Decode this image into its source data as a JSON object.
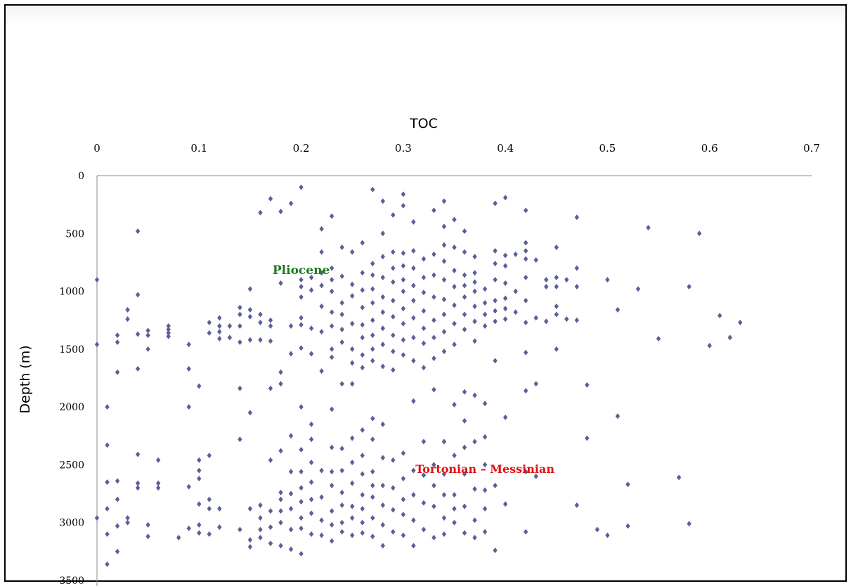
{
  "chart_data": {
    "type": "scatter",
    "title": "",
    "xlabel": "TOC",
    "ylabel": "Depth (m)",
    "xlim": [
      0,
      0.7
    ],
    "ylim": [
      0,
      3500
    ],
    "y_inverted": true,
    "x_axis_position": "top",
    "grid": false,
    "x_ticks": [
      "0",
      "0.1",
      "0.2",
      "0.3",
      "0.4",
      "0.5",
      "0.6",
      "0.7"
    ],
    "y_ticks": [
      "0",
      "500",
      "1000",
      "1500",
      "2000",
      "2500",
      "3000",
      "3500"
    ],
    "marker_color": "#5a5f96",
    "annotations": [
      {
        "text": "Pliocene",
        "color": "#1f7a1f",
        "x": 0.2,
        "y": 850
      },
      {
        "text": "Tortonian – Messinian",
        "color": "#e01010",
        "x": 0.38,
        "y": 2570
      }
    ],
    "points": [
      [
        0,
        900
      ],
      [
        0,
        1460
      ],
      [
        0,
        2960
      ],
      [
        0.01,
        2000
      ],
      [
        0.01,
        2330
      ],
      [
        0.01,
        2650
      ],
      [
        0.01,
        2880
      ],
      [
        0.01,
        3100
      ],
      [
        0.01,
        3360
      ],
      [
        0.02,
        1380
      ],
      [
        0.02,
        1440
      ],
      [
        0.02,
        1700
      ],
      [
        0.02,
        2640
      ],
      [
        0.02,
        2800
      ],
      [
        0.02,
        3030
      ],
      [
        0.02,
        3250
      ],
      [
        0.03,
        1160
      ],
      [
        0.03,
        1240
      ],
      [
        0.03,
        2960
      ],
      [
        0.03,
        3000
      ],
      [
        0.04,
        480
      ],
      [
        0.04,
        1030
      ],
      [
        0.04,
        1370
      ],
      [
        0.04,
        1670
      ],
      [
        0.04,
        2410
      ],
      [
        0.04,
        2660
      ],
      [
        0.04,
        2700
      ],
      [
        0.05,
        1340
      ],
      [
        0.05,
        1380
      ],
      [
        0.05,
        1500
      ],
      [
        0.05,
        3020
      ],
      [
        0.05,
        3120
      ],
      [
        0.06,
        2460
      ],
      [
        0.06,
        2660
      ],
      [
        0.06,
        2700
      ],
      [
        0.07,
        1300
      ],
      [
        0.07,
        1330
      ],
      [
        0.07,
        1360
      ],
      [
        0.07,
        1390
      ],
      [
        0.08,
        3130
      ],
      [
        0.09,
        1460
      ],
      [
        0.09,
        1670
      ],
      [
        0.09,
        2000
      ],
      [
        0.09,
        2690
      ],
      [
        0.09,
        3050
      ],
      [
        0.1,
        1820
      ],
      [
        0.1,
        2460
      ],
      [
        0.1,
        2550
      ],
      [
        0.1,
        2620
      ],
      [
        0.1,
        2840
      ],
      [
        0.1,
        3020
      ],
      [
        0.1,
        3090
      ],
      [
        0.11,
        1270
      ],
      [
        0.11,
        1360
      ],
      [
        0.11,
        2420
      ],
      [
        0.11,
        2800
      ],
      [
        0.11,
        2880
      ],
      [
        0.11,
        3100
      ],
      [
        0.12,
        1230
      ],
      [
        0.12,
        1300
      ],
      [
        0.12,
        1350
      ],
      [
        0.12,
        1410
      ],
      [
        0.12,
        2880
      ],
      [
        0.12,
        3040
      ],
      [
        0.13,
        1300
      ],
      [
        0.13,
        1400
      ],
      [
        0.14,
        1140
      ],
      [
        0.14,
        1200
      ],
      [
        0.14,
        1300
      ],
      [
        0.14,
        1440
      ],
      [
        0.14,
        1840
      ],
      [
        0.14,
        2280
      ],
      [
        0.14,
        3060
      ],
      [
        0.15,
        980
      ],
      [
        0.15,
        1160
      ],
      [
        0.15,
        1220
      ],
      [
        0.15,
        1420
      ],
      [
        0.15,
        2050
      ],
      [
        0.15,
        2880
      ],
      [
        0.15,
        3150
      ],
      [
        0.15,
        3210
      ],
      [
        0.16,
        320
      ],
      [
        0.16,
        1200
      ],
      [
        0.16,
        1270
      ],
      [
        0.16,
        1420
      ],
      [
        0.16,
        2850
      ],
      [
        0.16,
        2960
      ],
      [
        0.16,
        3060
      ],
      [
        0.16,
        3130
      ],
      [
        0.17,
        200
      ],
      [
        0.17,
        1250
      ],
      [
        0.17,
        1300
      ],
      [
        0.17,
        1430
      ],
      [
        0.17,
        1840
      ],
      [
        0.17,
        2460
      ],
      [
        0.17,
        2900
      ],
      [
        0.17,
        3040
      ],
      [
        0.17,
        3180
      ],
      [
        0.18,
        310
      ],
      [
        0.18,
        930
      ],
      [
        0.18,
        1700
      ],
      [
        0.18,
        1800
      ],
      [
        0.18,
        2380
      ],
      [
        0.18,
        2740
      ],
      [
        0.18,
        2800
      ],
      [
        0.18,
        2900
      ],
      [
        0.18,
        3000
      ],
      [
        0.18,
        3200
      ],
      [
        0.19,
        240
      ],
      [
        0.19,
        1300
      ],
      [
        0.19,
        1540
      ],
      [
        0.19,
        2250
      ],
      [
        0.19,
        2560
      ],
      [
        0.19,
        2750
      ],
      [
        0.19,
        2880
      ],
      [
        0.19,
        3060
      ],
      [
        0.19,
        3230
      ],
      [
        0.2,
        100
      ],
      [
        0.2,
        900
      ],
      [
        0.2,
        960
      ],
      [
        0.2,
        1050
      ],
      [
        0.2,
        1230
      ],
      [
        0.2,
        1290
      ],
      [
        0.2,
        1490
      ],
      [
        0.2,
        2000
      ],
      [
        0.2,
        2370
      ],
      [
        0.2,
        2560
      ],
      [
        0.2,
        2700
      ],
      [
        0.2,
        2820
      ],
      [
        0.2,
        2960
      ],
      [
        0.2,
        3050
      ],
      [
        0.2,
        3270
      ],
      [
        0.21,
        880
      ],
      [
        0.21,
        990
      ],
      [
        0.21,
        1320
      ],
      [
        0.21,
        1540
      ],
      [
        0.21,
        2150
      ],
      [
        0.21,
        2280
      ],
      [
        0.21,
        2480
      ],
      [
        0.21,
        2650
      ],
      [
        0.21,
        2800
      ],
      [
        0.21,
        2920
      ],
      [
        0.21,
        3100
      ],
      [
        0.22,
        460
      ],
      [
        0.22,
        660
      ],
      [
        0.22,
        840
      ],
      [
        0.22,
        950
      ],
      [
        0.22,
        1130
      ],
      [
        0.22,
        1350
      ],
      [
        0.22,
        1690
      ],
      [
        0.22,
        2550
      ],
      [
        0.22,
        2780
      ],
      [
        0.22,
        2980
      ],
      [
        0.22,
        3110
      ],
      [
        0.23,
        350
      ],
      [
        0.23,
        800
      ],
      [
        0.23,
        900
      ],
      [
        0.23,
        1000
      ],
      [
        0.23,
        1180
      ],
      [
        0.23,
        1300
      ],
      [
        0.23,
        1500
      ],
      [
        0.23,
        1570
      ],
      [
        0.23,
        2020
      ],
      [
        0.23,
        2350
      ],
      [
        0.23,
        2560
      ],
      [
        0.23,
        2680
      ],
      [
        0.23,
        2900
      ],
      [
        0.23,
        3020
      ],
      [
        0.23,
        3160
      ],
      [
        0.24,
        620
      ],
      [
        0.24,
        870
      ],
      [
        0.24,
        1100
      ],
      [
        0.24,
        1200
      ],
      [
        0.24,
        1330
      ],
      [
        0.24,
        1440
      ],
      [
        0.24,
        1800
      ],
      [
        0.24,
        2360
      ],
      [
        0.24,
        2550
      ],
      [
        0.24,
        2740
      ],
      [
        0.24,
        2850
      ],
      [
        0.24,
        3000
      ],
      [
        0.24,
        3080
      ],
      [
        0.25,
        660
      ],
      [
        0.25,
        940
      ],
      [
        0.25,
        1040
      ],
      [
        0.25,
        1280
      ],
      [
        0.25,
        1500
      ],
      [
        0.25,
        1620
      ],
      [
        0.25,
        1800
      ],
      [
        0.25,
        2270
      ],
      [
        0.25,
        2480
      ],
      [
        0.25,
        2660
      ],
      [
        0.25,
        2860
      ],
      [
        0.25,
        2960
      ],
      [
        0.25,
        3110
      ],
      [
        0.26,
        580
      ],
      [
        0.26,
        840
      ],
      [
        0.26,
        990
      ],
      [
        0.26,
        1140
      ],
      [
        0.26,
        1290
      ],
      [
        0.26,
        1400
      ],
      [
        0.26,
        1550
      ],
      [
        0.26,
        1660
      ],
      [
        0.26,
        2200
      ],
      [
        0.26,
        2420
      ],
      [
        0.26,
        2580
      ],
      [
        0.26,
        2760
      ],
      [
        0.26,
        2880
      ],
      [
        0.26,
        3000
      ],
      [
        0.26,
        3090
      ],
      [
        0.27,
        120
      ],
      [
        0.27,
        760
      ],
      [
        0.27,
        860
      ],
      [
        0.27,
        980
      ],
      [
        0.27,
        1100
      ],
      [
        0.27,
        1250
      ],
      [
        0.27,
        1380
      ],
      [
        0.27,
        1500
      ],
      [
        0.27,
        1600
      ],
      [
        0.27,
        2100
      ],
      [
        0.27,
        2280
      ],
      [
        0.27,
        2560
      ],
      [
        0.27,
        2680
      ],
      [
        0.27,
        2780
      ],
      [
        0.27,
        2960
      ],
      [
        0.27,
        3120
      ],
      [
        0.28,
        220
      ],
      [
        0.28,
        500
      ],
      [
        0.28,
        700
      ],
      [
        0.28,
        880
      ],
      [
        0.28,
        1050
      ],
      [
        0.28,
        1180
      ],
      [
        0.28,
        1320
      ],
      [
        0.28,
        1460
      ],
      [
        0.28,
        1650
      ],
      [
        0.28,
        2150
      ],
      [
        0.28,
        2440
      ],
      [
        0.28,
        2680
      ],
      [
        0.28,
        2850
      ],
      [
        0.28,
        3020
      ],
      [
        0.28,
        3200
      ],
      [
        0.29,
        340
      ],
      [
        0.29,
        660
      ],
      [
        0.29,
        800
      ],
      [
        0.29,
        920
      ],
      [
        0.29,
        1080
      ],
      [
        0.29,
        1220
      ],
      [
        0.29,
        1380
      ],
      [
        0.29,
        1520
      ],
      [
        0.29,
        1680
      ],
      [
        0.29,
        2460
      ],
      [
        0.29,
        2700
      ],
      [
        0.29,
        2890
      ],
      [
        0.29,
        3080
      ],
      [
        0.3,
        160
      ],
      [
        0.3,
        260
      ],
      [
        0.3,
        670
      ],
      [
        0.3,
        780
      ],
      [
        0.3,
        900
      ],
      [
        0.3,
        1000
      ],
      [
        0.3,
        1150
      ],
      [
        0.3,
        1280
      ],
      [
        0.3,
        1420
      ],
      [
        0.3,
        1550
      ],
      [
        0.3,
        2400
      ],
      [
        0.3,
        2620
      ],
      [
        0.3,
        2800
      ],
      [
        0.3,
        2930
      ],
      [
        0.3,
        3110
      ],
      [
        0.31,
        400
      ],
      [
        0.31,
        650
      ],
      [
        0.31,
        800
      ],
      [
        0.31,
        950
      ],
      [
        0.31,
        1080
      ],
      [
        0.31,
        1230
      ],
      [
        0.31,
        1400
      ],
      [
        0.31,
        1600
      ],
      [
        0.31,
        1950
      ],
      [
        0.31,
        2550
      ],
      [
        0.31,
        2760
      ],
      [
        0.31,
        2980
      ],
      [
        0.31,
        3200
      ],
      [
        0.32,
        720
      ],
      [
        0.32,
        880
      ],
      [
        0.32,
        1010
      ],
      [
        0.32,
        1170
      ],
      [
        0.32,
        1320
      ],
      [
        0.32,
        1450
      ],
      [
        0.32,
        1660
      ],
      [
        0.32,
        2300
      ],
      [
        0.32,
        2590
      ],
      [
        0.32,
        2830
      ],
      [
        0.32,
        3060
      ],
      [
        0.33,
        300
      ],
      [
        0.33,
        680
      ],
      [
        0.33,
        860
      ],
      [
        0.33,
        1050
      ],
      [
        0.33,
        1250
      ],
      [
        0.33,
        1400
      ],
      [
        0.33,
        1580
      ],
      [
        0.33,
        1850
      ],
      [
        0.33,
        2500
      ],
      [
        0.33,
        2680
      ],
      [
        0.33,
        2860
      ],
      [
        0.33,
        3130
      ],
      [
        0.34,
        220
      ],
      [
        0.34,
        440
      ],
      [
        0.34,
        600
      ],
      [
        0.34,
        740
      ],
      [
        0.34,
        900
      ],
      [
        0.34,
        1070
      ],
      [
        0.34,
        1200
      ],
      [
        0.34,
        1350
      ],
      [
        0.34,
        1520
      ],
      [
        0.34,
        2300
      ],
      [
        0.34,
        2580
      ],
      [
        0.34,
        2760
      ],
      [
        0.34,
        2960
      ],
      [
        0.34,
        3100
      ],
      [
        0.35,
        380
      ],
      [
        0.35,
        620
      ],
      [
        0.35,
        820
      ],
      [
        0.35,
        960
      ],
      [
        0.35,
        1120
      ],
      [
        0.35,
        1280
      ],
      [
        0.35,
        1460
      ],
      [
        0.35,
        1980
      ],
      [
        0.35,
        2420
      ],
      [
        0.35,
        2760
      ],
      [
        0.35,
        2880
      ],
      [
        0.35,
        3000
      ],
      [
        0.36,
        480
      ],
      [
        0.36,
        660
      ],
      [
        0.36,
        860
      ],
      [
        0.36,
        950
      ],
      [
        0.36,
        1050
      ],
      [
        0.36,
        1200
      ],
      [
        0.36,
        1330
      ],
      [
        0.36,
        1870
      ],
      [
        0.36,
        2120
      ],
      [
        0.36,
        2350
      ],
      [
        0.36,
        2580
      ],
      [
        0.36,
        2860
      ],
      [
        0.36,
        3090
      ],
      [
        0.37,
        700
      ],
      [
        0.37,
        840
      ],
      [
        0.37,
        920
      ],
      [
        0.37,
        1000
      ],
      [
        0.37,
        1130
      ],
      [
        0.37,
        1260
      ],
      [
        0.37,
        1430
      ],
      [
        0.37,
        1900
      ],
      [
        0.37,
        2300
      ],
      [
        0.37,
        2710
      ],
      [
        0.37,
        2980
      ],
      [
        0.37,
        3130
      ],
      [
        0.38,
        980
      ],
      [
        0.38,
        1100
      ],
      [
        0.38,
        1200
      ],
      [
        0.38,
        1300
      ],
      [
        0.38,
        1970
      ],
      [
        0.38,
        2260
      ],
      [
        0.38,
        2500
      ],
      [
        0.38,
        2720
      ],
      [
        0.38,
        2880
      ],
      [
        0.38,
        3080
      ],
      [
        0.39,
        240
      ],
      [
        0.39,
        650
      ],
      [
        0.39,
        760
      ],
      [
        0.39,
        900
      ],
      [
        0.39,
        1080
      ],
      [
        0.39,
        1170
      ],
      [
        0.39,
        1260
      ],
      [
        0.39,
        1600
      ],
      [
        0.39,
        2680
      ],
      [
        0.39,
        3240
      ],
      [
        0.4,
        190
      ],
      [
        0.4,
        690
      ],
      [
        0.4,
        780
      ],
      [
        0.4,
        930
      ],
      [
        0.4,
        1060
      ],
      [
        0.4,
        1150
      ],
      [
        0.4,
        1240
      ],
      [
        0.4,
        2090
      ],
      [
        0.4,
        2840
      ],
      [
        0.41,
        680
      ],
      [
        0.41,
        1000
      ],
      [
        0.41,
        1180
      ],
      [
        0.42,
        300
      ],
      [
        0.42,
        580
      ],
      [
        0.42,
        650
      ],
      [
        0.42,
        720
      ],
      [
        0.42,
        880
      ],
      [
        0.42,
        1080
      ],
      [
        0.42,
        1270
      ],
      [
        0.42,
        1530
      ],
      [
        0.42,
        1860
      ],
      [
        0.42,
        2560
      ],
      [
        0.42,
        3080
      ],
      [
        0.43,
        730
      ],
      [
        0.43,
        1230
      ],
      [
        0.43,
        1800
      ],
      [
        0.43,
        2600
      ],
      [
        0.44,
        900
      ],
      [
        0.44,
        960
      ],
      [
        0.44,
        1260
      ],
      [
        0.45,
        620
      ],
      [
        0.45,
        880
      ],
      [
        0.45,
        960
      ],
      [
        0.45,
        1130
      ],
      [
        0.45,
        1200
      ],
      [
        0.45,
        1500
      ],
      [
        0.46,
        900
      ],
      [
        0.46,
        1240
      ],
      [
        0.47,
        360
      ],
      [
        0.47,
        800
      ],
      [
        0.47,
        960
      ],
      [
        0.47,
        1250
      ],
      [
        0.47,
        2850
      ],
      [
        0.48,
        1810
      ],
      [
        0.48,
        2270
      ],
      [
        0.49,
        3060
      ],
      [
        0.5,
        900
      ],
      [
        0.5,
        3110
      ],
      [
        0.51,
        1160
      ],
      [
        0.51,
        2080
      ],
      [
        0.52,
        2670
      ],
      [
        0.52,
        3030
      ],
      [
        0.53,
        980
      ],
      [
        0.54,
        450
      ],
      [
        0.55,
        1410
      ],
      [
        0.57,
        2610
      ],
      [
        0.58,
        960
      ],
      [
        0.58,
        3010
      ],
      [
        0.59,
        500
      ],
      [
        0.6,
        1470
      ],
      [
        0.61,
        1210
      ],
      [
        0.62,
        1400
      ],
      [
        0.63,
        1270
      ]
    ]
  }
}
